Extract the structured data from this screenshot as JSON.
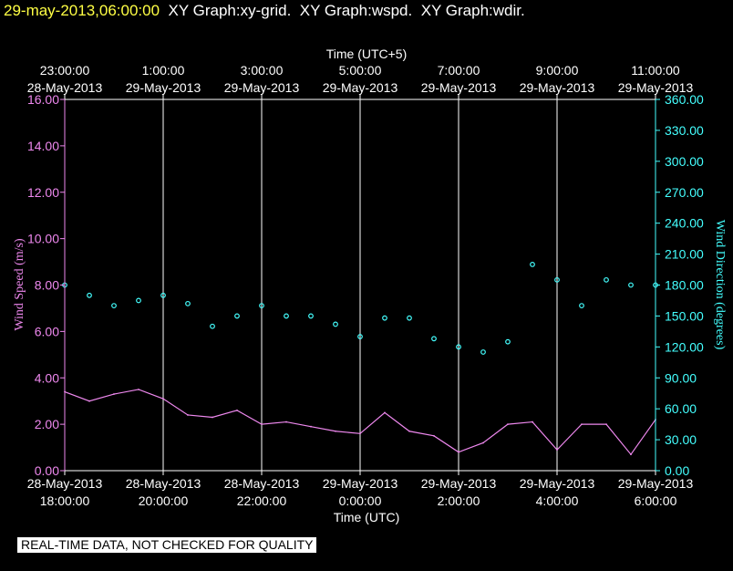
{
  "header": {
    "timestamp": "29-may-2013,06:00:00",
    "graphs": [
      "XY Graph:xy-grid.",
      "XY Graph:wspd.",
      "XY Graph:wdir."
    ]
  },
  "footer_note": "REAL-TIME DATA, NOT CHECKED FOR QUALITY",
  "colors": {
    "background": "#000000",
    "wspd": "#ee88ee",
    "wdir": "#44ffff",
    "grid": "#ffffff",
    "timestamp": "#ffff44"
  },
  "chart_data": {
    "type": "line",
    "top_axis": {
      "title": "Time (UTC+5)",
      "ticks": [
        {
          "time": "23:00:00",
          "date": "28-May-2013"
        },
        {
          "time": "1:00:00",
          "date": "29-May-2013"
        },
        {
          "time": "3:00:00",
          "date": "29-May-2013"
        },
        {
          "time": "5:00:00",
          "date": "29-May-2013"
        },
        {
          "time": "7:00:00",
          "date": "29-May-2013"
        },
        {
          "time": "9:00:00",
          "date": "29-May-2013"
        },
        {
          "time": "11:00:00",
          "date": "29-May-2013"
        }
      ]
    },
    "x_axis": {
      "title": "Time (UTC)",
      "range": [
        "2013-05-28T18:00:00",
        "2013-05-29T06:00:00"
      ],
      "ticks": [
        {
          "date": "28-May-2013",
          "time": "18:00:00"
        },
        {
          "date": "28-May-2013",
          "time": "20:00:00"
        },
        {
          "date": "28-May-2013",
          "time": "22:00:00"
        },
        {
          "date": "29-May-2013",
          "time": "0:00:00"
        },
        {
          "date": "29-May-2013",
          "time": "2:00:00"
        },
        {
          "date": "29-May-2013",
          "time": "4:00:00"
        },
        {
          "date": "29-May-2013",
          "time": "6:00:00"
        }
      ]
    },
    "y_left": {
      "title": "Wind Speed (m/s)",
      "range": [
        0,
        16
      ],
      "ticks": [
        "0.00",
        "2.00",
        "4.00",
        "6.00",
        "8.00",
        "10.00",
        "12.00",
        "14.00",
        "16.00"
      ]
    },
    "y_right": {
      "title": "Wind Direction (degrees)",
      "range": [
        0,
        360
      ],
      "ticks": [
        "0.00",
        "30.00",
        "60.00",
        "90.00",
        "120.00",
        "150.00",
        "180.00",
        "210.00",
        "240.00",
        "270.00",
        "300.00",
        "330.00",
        "360.00"
      ]
    },
    "grid": "vertical lines at each x tick",
    "series": [
      {
        "key": "wspd",
        "style": "line",
        "axis": "left",
        "x": [
          "2013-05-28T18:00:00",
          "2013-05-28T18:30:00",
          "2013-05-28T19:00:00",
          "2013-05-28T19:30:00",
          "2013-05-28T20:00:00",
          "2013-05-28T20:30:00",
          "2013-05-28T21:00:00",
          "2013-05-28T21:30:00",
          "2013-05-28T22:00:00",
          "2013-05-28T22:30:00",
          "2013-05-28T23:00:00",
          "2013-05-28T23:30:00",
          "2013-05-29T00:00:00",
          "2013-05-29T00:30:00",
          "2013-05-29T01:00:00",
          "2013-05-29T01:30:00",
          "2013-05-29T02:00:00",
          "2013-05-29T02:30:00",
          "2013-05-29T03:00:00",
          "2013-05-29T03:30:00",
          "2013-05-29T04:00:00",
          "2013-05-29T04:30:00",
          "2013-05-29T05:00:00",
          "2013-05-29T05:30:00",
          "2013-05-29T06:00:00"
        ],
        "values": [
          3.4,
          3.0,
          3.3,
          3.5,
          3.1,
          2.4,
          2.3,
          2.6,
          2.0,
          2.1,
          1.9,
          1.7,
          1.6,
          2.5,
          1.7,
          1.5,
          0.8,
          1.2,
          2.0,
          2.1,
          0.9,
          2.0,
          2.0,
          0.7,
          2.2
        ]
      },
      {
        "key": "wdir",
        "style": "circle-markers",
        "axis": "right",
        "x": [
          "2013-05-28T18:00:00",
          "2013-05-28T18:30:00",
          "2013-05-28T19:00:00",
          "2013-05-28T19:30:00",
          "2013-05-28T20:00:00",
          "2013-05-28T20:30:00",
          "2013-05-28T21:00:00",
          "2013-05-28T21:30:00",
          "2013-05-28T22:00:00",
          "2013-05-28T22:30:00",
          "2013-05-28T23:00:00",
          "2013-05-28T23:30:00",
          "2013-05-29T00:00:00",
          "2013-05-29T00:30:00",
          "2013-05-29T01:00:00",
          "2013-05-29T01:30:00",
          "2013-05-29T02:00:00",
          "2013-05-29T02:30:00",
          "2013-05-29T03:00:00",
          "2013-05-29T03:30:00",
          "2013-05-29T04:00:00",
          "2013-05-29T04:30:00",
          "2013-05-29T05:00:00",
          "2013-05-29T05:30:00",
          "2013-05-29T06:00:00"
        ],
        "values": [
          180,
          170,
          160,
          165,
          170,
          162,
          140,
          150,
          160,
          150,
          150,
          142,
          130,
          148,
          148,
          128,
          120,
          115,
          125,
          200,
          185,
          160,
          185,
          180,
          180
        ]
      }
    ]
  }
}
